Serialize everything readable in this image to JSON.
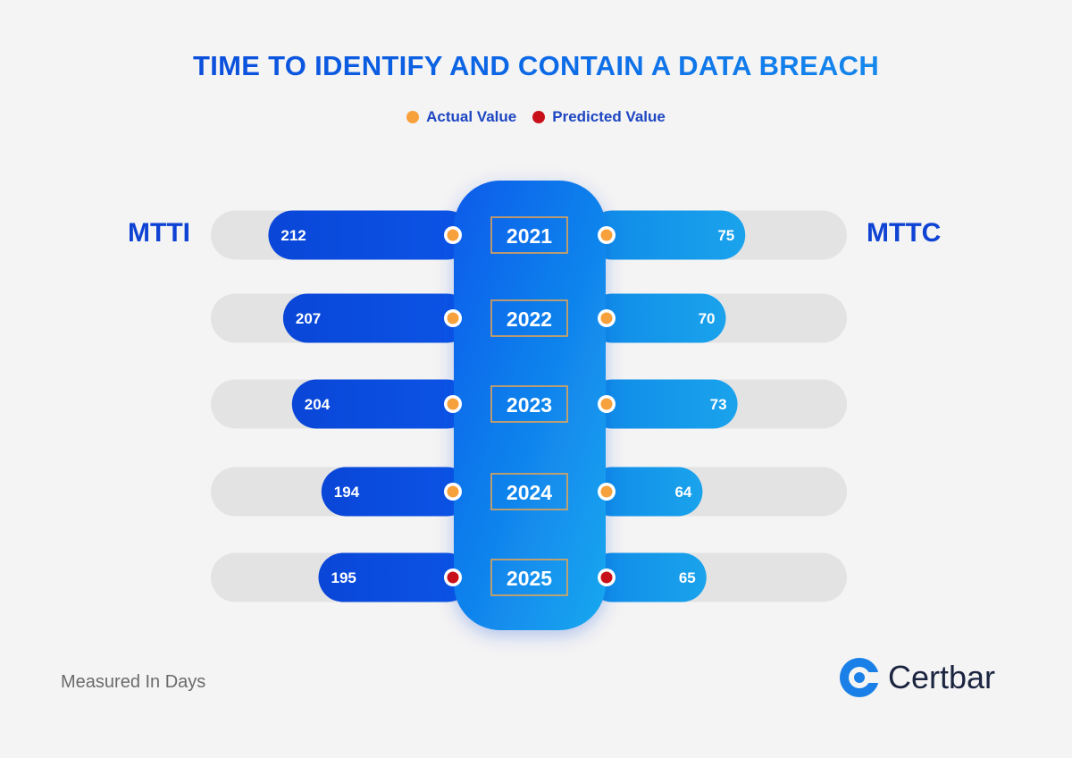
{
  "title": "TIME TO IDENTIFY AND CONTAIN A DATA BREACH",
  "legend": {
    "actual_label": "Actual Value",
    "predicted_label": "Predicted Value"
  },
  "side_labels": {
    "left": "MTTI",
    "right": "MTTC"
  },
  "footer_note": "Measured In Days",
  "brand": {
    "name": "Certbar",
    "logo_icon": "certbar-logo-icon"
  },
  "colors": {
    "title_start": "#0a3fd6",
    "title_end": "#1a98f0",
    "left_bar": "#0a46d8",
    "right_bar": "#1aa3ec",
    "track": "#e3e3e3",
    "actual_marker": "#f7a13c",
    "predicted_marker": "#c8101a",
    "center_pill_top": "#0b5bea",
    "center_pill_bottom": "#16a8ef"
  },
  "chart_data": {
    "type": "bar",
    "layout": "butterfly",
    "unit": "Days",
    "categories": [
      "2021",
      "2022",
      "2023",
      "2024",
      "2025"
    ],
    "series": [
      {
        "name": "MTTI",
        "side": "left",
        "values": [
          212,
          207,
          204,
          194,
          195
        ]
      },
      {
        "name": "MTTC",
        "side": "right",
        "values": [
          75,
          70,
          73,
          64,
          65
        ]
      }
    ],
    "status": [
      "actual",
      "actual",
      "actual",
      "actual",
      "predicted"
    ],
    "legend_position": "top-center"
  }
}
